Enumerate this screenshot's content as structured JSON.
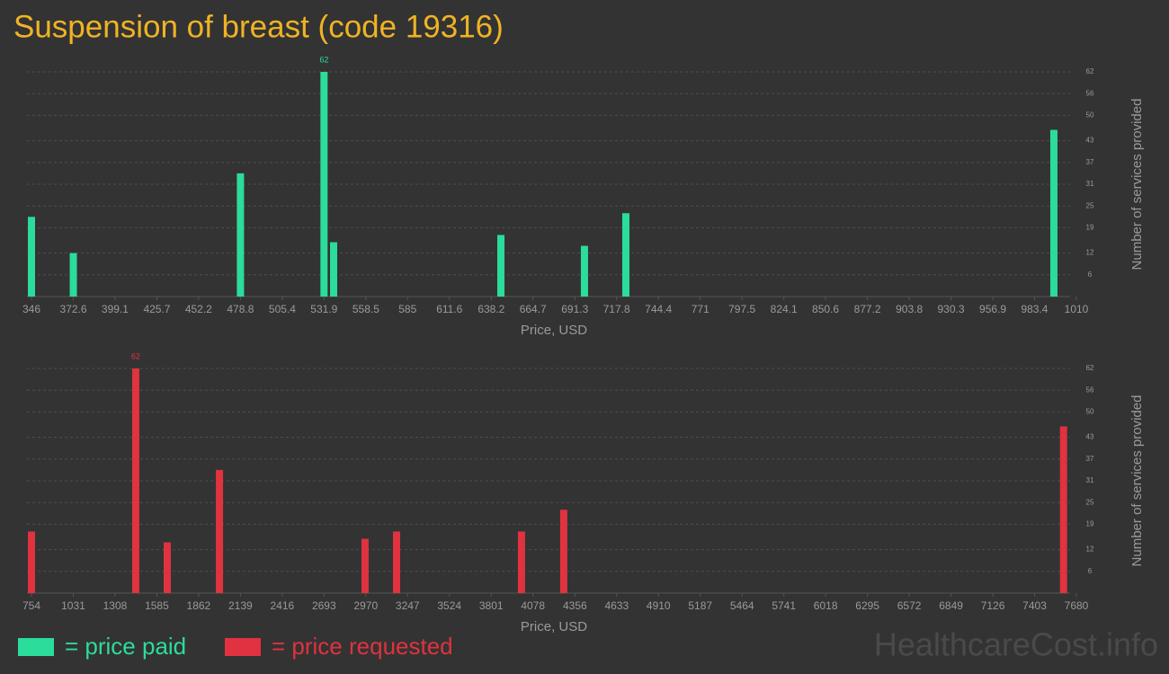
{
  "title": "Suspension of breast (code 19316)",
  "watermark": "HealthcareCost.info",
  "chart_data": [
    {
      "type": "bar",
      "x_label": "Price, USD",
      "y_label": "Number of services provided",
      "xlim": [
        346,
        1010
      ],
      "xticks": [
        346,
        372.6,
        399.1,
        425.7,
        452.2,
        478.8,
        505.4,
        531.9,
        558.5,
        585,
        611.6,
        638.2,
        664.7,
        691.3,
        717.8,
        744.4,
        771,
        797.5,
        824.1,
        850.6,
        877.2,
        903.8,
        930.3,
        956.9,
        983.4,
        1010
      ],
      "ylim": [
        0,
        62
      ],
      "yticks": [
        6,
        12,
        19,
        25,
        31,
        37,
        43,
        50,
        56,
        62
      ],
      "grid": true,
      "series": [
        {
          "name": "= price paid",
          "color": "#2bdc9b",
          "x": [
            346,
            372.6,
            478.8,
            531.9,
            538,
            644.3,
            697.4,
            723.7,
            995.7
          ],
          "values": [
            22,
            12,
            34,
            62,
            15,
            17,
            14,
            23,
            46
          ],
          "value_labels": [
            null,
            null,
            null,
            "62",
            null,
            null,
            null,
            null,
            null
          ]
        }
      ]
    },
    {
      "type": "bar",
      "x_label": "Price, USD",
      "y_label": "Number of services provided",
      "xlim": [
        754,
        7680
      ],
      "xticks": [
        754,
        1031,
        1308,
        1585,
        1862,
        2139,
        2416,
        2693,
        2970,
        3247,
        3524,
        3801,
        4078,
        4356,
        4633,
        4910,
        5187,
        5464,
        5741,
        6018,
        6295,
        6572,
        6849,
        7126,
        7403,
        7680
      ],
      "ylim": [
        0,
        62
      ],
      "yticks": [
        6,
        12,
        19,
        25,
        31,
        37,
        43,
        50,
        56,
        62
      ],
      "grid": true,
      "series": [
        {
          "name": "= price requested",
          "color": "#e0323f",
          "x": [
            754,
            1445,
            1654,
            2000,
            2965,
            3174,
            4002,
            4282,
            7595
          ],
          "values": [
            17,
            62,
            14,
            34,
            15,
            17,
            17,
            23,
            46
          ],
          "value_labels": [
            null,
            "62",
            null,
            null,
            null,
            null,
            null,
            null,
            null
          ]
        }
      ]
    }
  ]
}
